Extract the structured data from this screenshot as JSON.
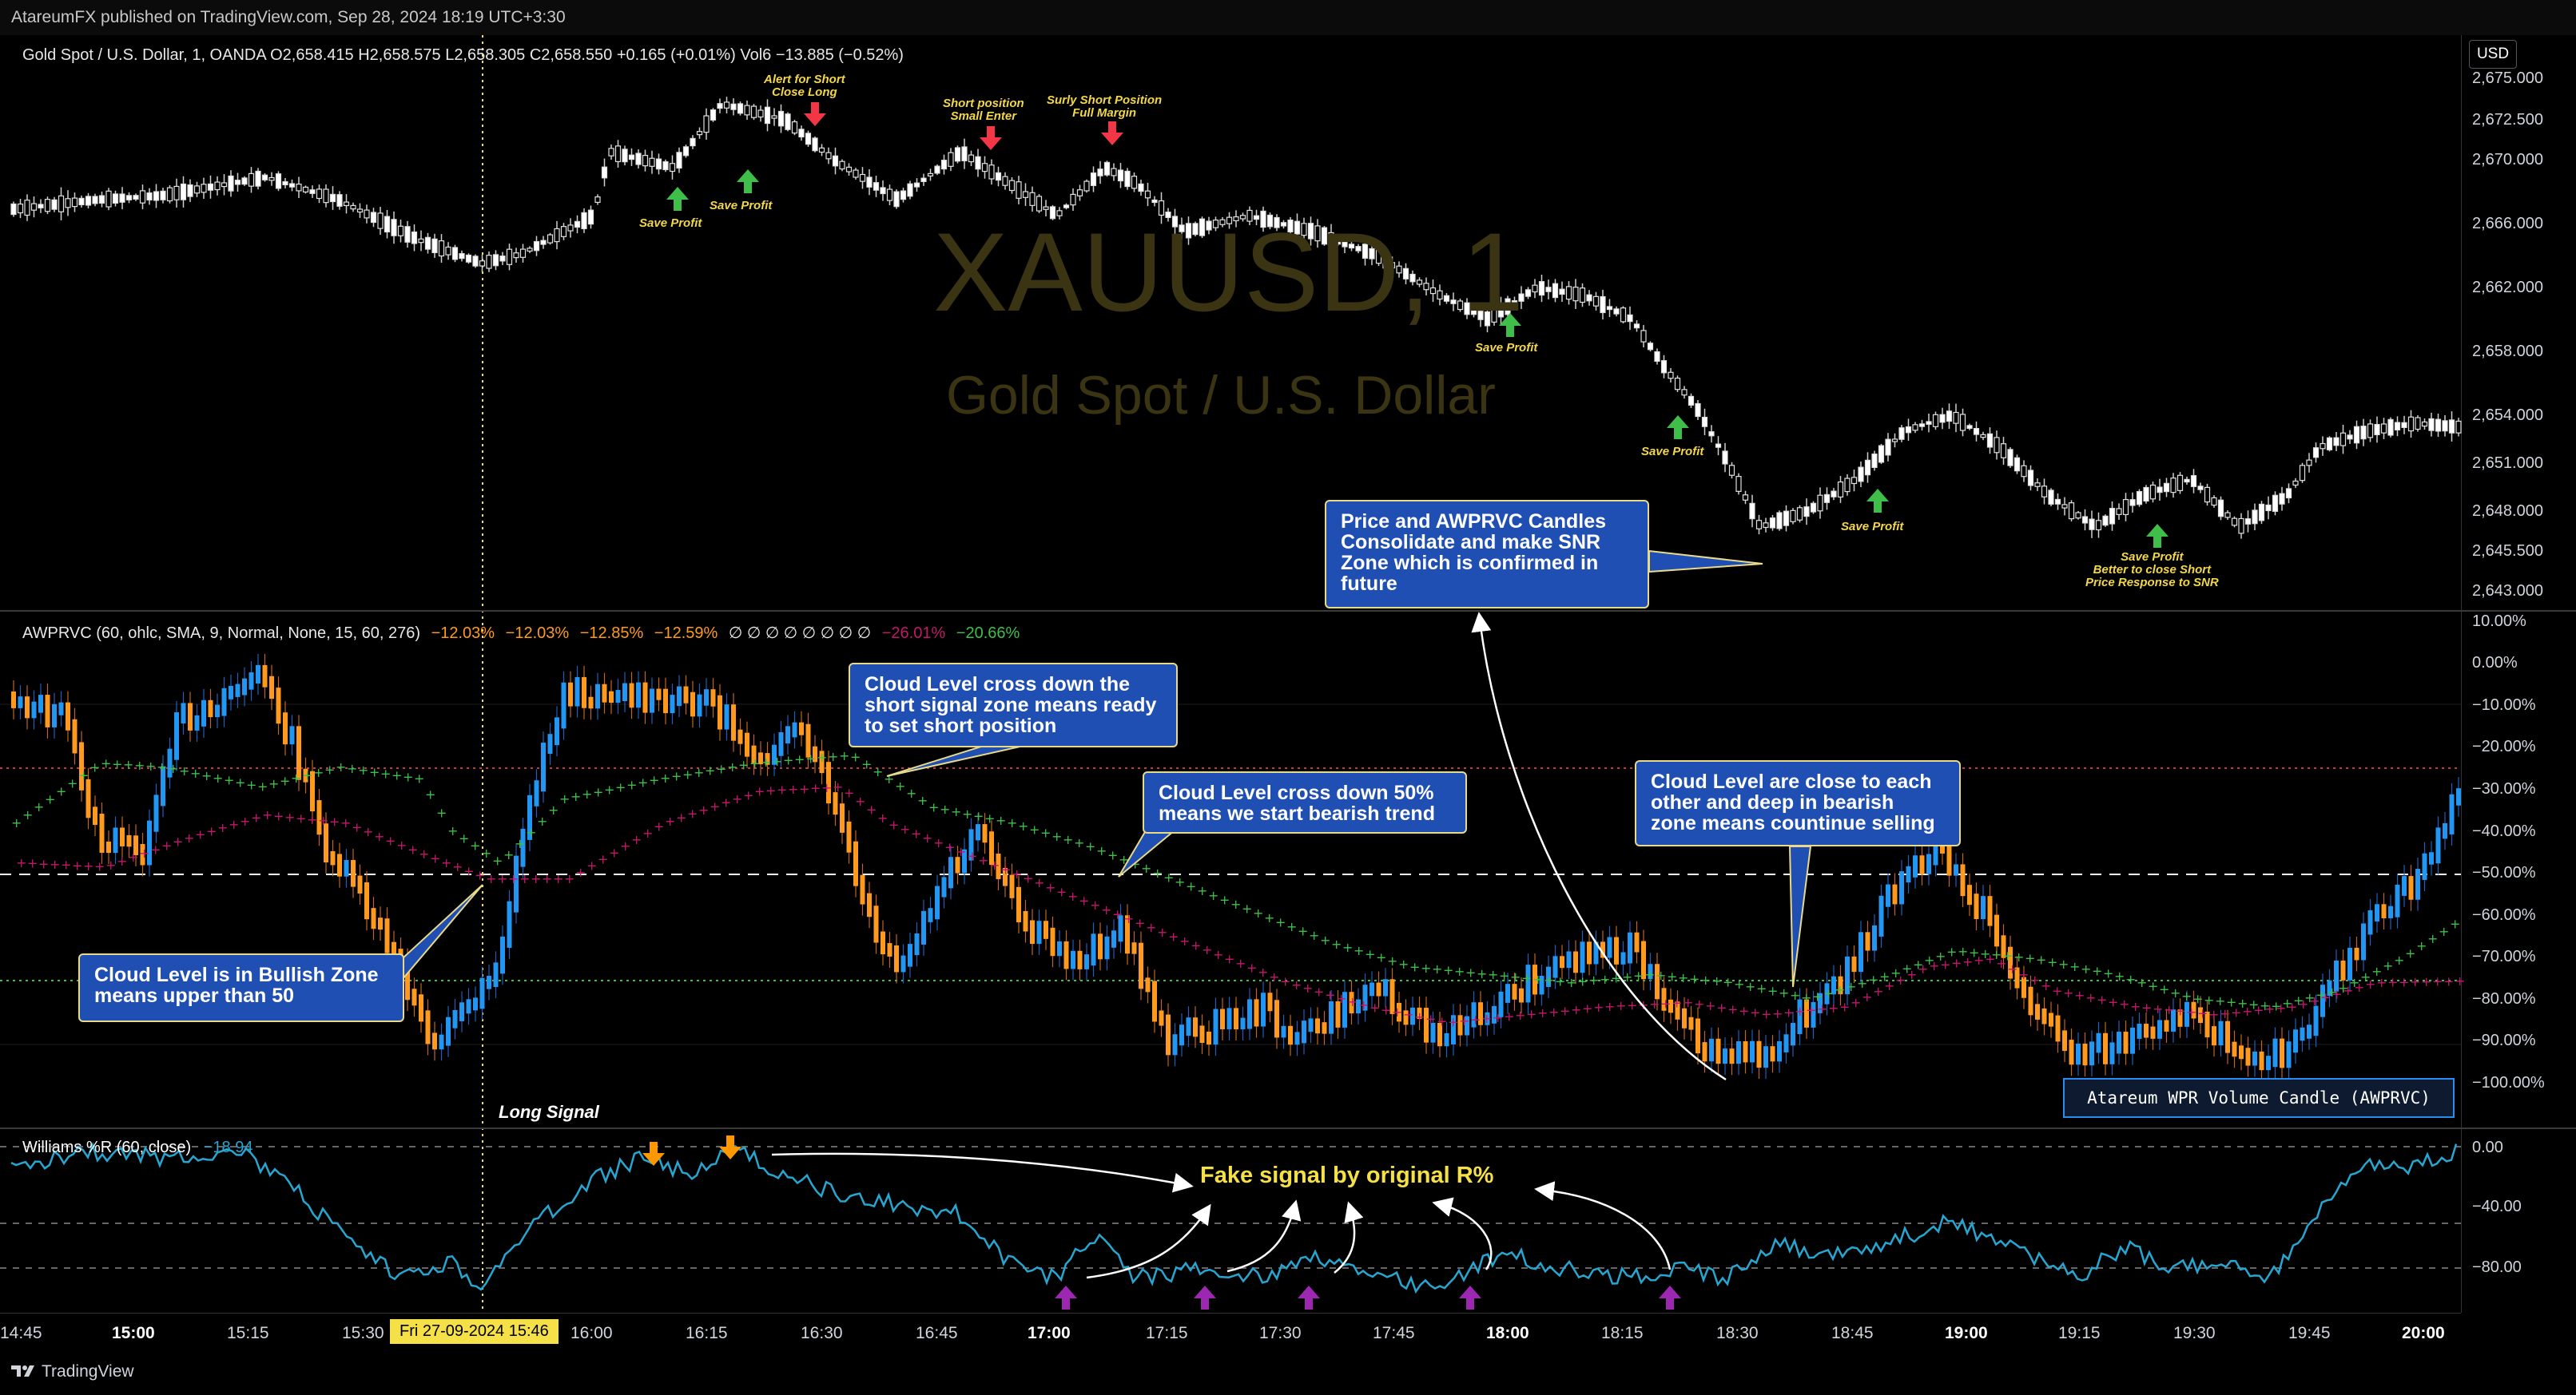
{
  "header": {
    "publish_info": "AtareumFX published on TradingView.com, Sep 28, 2024 18:19 UTC+3:30"
  },
  "price_pane": {
    "legend": "Gold Spot / U.S. Dollar, 1, OANDA  O2,658.415  H2,658.575  L2,658.305  C2,658.550  +0.165 (+0.01%)  Vol6  −13.885 (−0.52%)",
    "watermark_symbol": "XAUUSD, 1",
    "watermark_name": "Gold Spot / U.S. Dollar",
    "currency_button": "USD",
    "axis_labels": [
      "2,675.000",
      "2,672.500",
      "2,670.000",
      "2,666.000",
      "2,662.000",
      "2,658.000",
      "2,654.000",
      "2,651.000",
      "2,648.000",
      "2,645.500",
      "2,643.000"
    ]
  },
  "annotations": {
    "save_profit": "Save Profit",
    "alert_short": [
      "Alert for Short",
      "Close Long"
    ],
    "short_position": [
      "Short position",
      "Small Enter"
    ],
    "surly_short": [
      "Surly Short Position",
      "Full Margin"
    ],
    "save_profit_last": [
      "Save Profit",
      "Better to close Short",
      "Price Response to SNR"
    ]
  },
  "callouts": {
    "price_snr": "Price and AWPRVC Candles Consolidate and make SNR Zone which is confirmed in future",
    "cloud_cross_short": "Cloud Level cross down the short signal zone means ready to set short position",
    "cloud_cross_50": "Cloud Level cross down 50% means we start bearish trend",
    "cloud_close": "Cloud Level are close to each other and deep in bearish zone means countinue selling",
    "cloud_bullish": "Cloud Level is in Bullish Zone means upper than 50"
  },
  "awprvc_pane": {
    "legend_name": "AWPRVC (60, ohlc, SMA, 9, Normal, None, 15, 60, 276)",
    "legend_values": [
      "−12.03%",
      "−12.03%",
      "−12.85%",
      "−12.59%"
    ],
    "legend_empty": "∅ ∅ ∅ ∅ ∅ ∅ ∅ ∅",
    "legend_value_magenta": "−26.01%",
    "legend_value_green": "−20.66%",
    "axis_labels": [
      "10.00%",
      "0.00%",
      "−10.00%",
      "−20.00%",
      "−30.00%",
      "−40.00%",
      "−50.00%",
      "−60.00%",
      "−70.00%",
      "−80.00%",
      "−90.00%",
      "−100.00%"
    ],
    "indicator_title": "Atareum WPR Volume Candle (AWPRVC)",
    "long_signal": "Long Signal"
  },
  "wpr_pane": {
    "legend_name": "Williams %R (60, close)",
    "legend_value": "−18.94",
    "fake_signal": "Fake signal by original R%",
    "axis_labels": [
      "0.00",
      "−40.00",
      "−80.00"
    ]
  },
  "time_axis": {
    "labels": [
      "14:45",
      "15:00",
      "15:15",
      "15:30",
      "16:00",
      "16:15",
      "16:30",
      "16:45",
      "17:00",
      "17:15",
      "17:30",
      "17:45",
      "18:00",
      "18:15",
      "18:30",
      "18:45",
      "19:00",
      "19:15",
      "19:30",
      "19:45",
      "20:00"
    ],
    "cursor_date": "Fri 27-09-2024   15:46"
  },
  "footer": {
    "brand": "TradingView"
  },
  "colors": {
    "up_candle": "#ffffff",
    "bar_blue": "#2196f3",
    "bar_orange": "#ff9a1f",
    "cloud_green": "#3fbf4a",
    "cloud_magenta": "#c2186b",
    "wpr_line": "#26a6d1",
    "callout_bg": "#1f4fb3",
    "annotation_yellow": "#f2d64b",
    "arrow_green": "#3fbf4a",
    "arrow_red": "#f23645",
    "arrow_orange": "#ff9800",
    "arrow_purple": "#9c27b0"
  }
}
